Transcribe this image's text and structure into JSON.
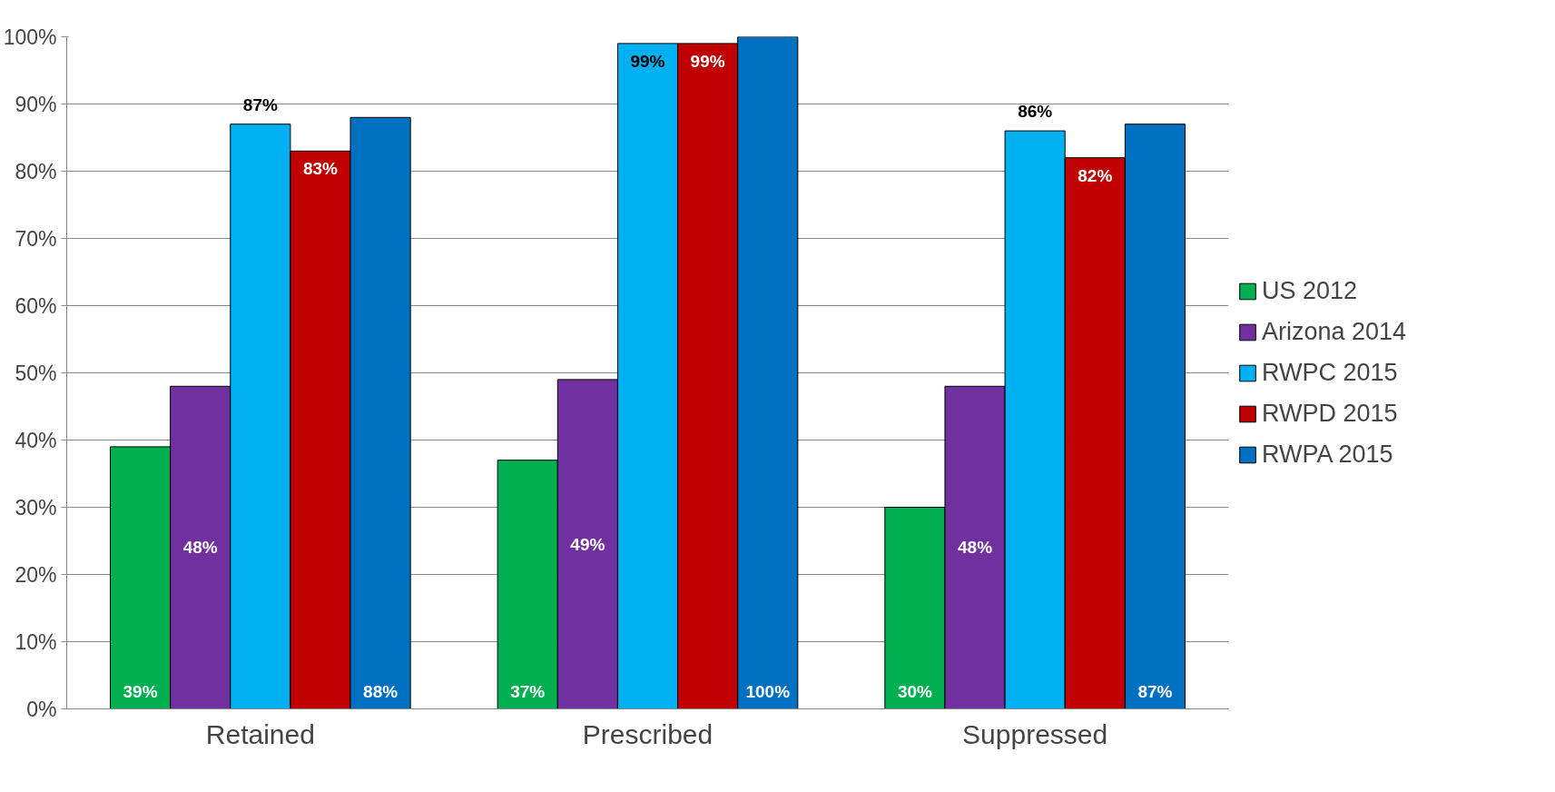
{
  "chart_data": {
    "type": "bar",
    "categories": [
      "Retained",
      "Prescribed",
      "Suppressed"
    ],
    "series": [
      {
        "name": "US 2012",
        "color": "#00b050",
        "values": [
          39,
          37,
          30
        ],
        "value_labels": [
          "39%",
          "37%",
          "30%"
        ]
      },
      {
        "name": "Arizona 2014",
        "color": "#7030a0",
        "values": [
          48,
          49,
          48
        ],
        "value_labels": [
          "48%",
          "49%",
          "48%"
        ]
      },
      {
        "name": "RWPC 2015",
        "color": "#00b0f0",
        "values": [
          87,
          99,
          86
        ],
        "value_labels": [
          "87%",
          "99%",
          "86%"
        ]
      },
      {
        "name": "RWPD 2015",
        "color": "#c00000",
        "values": [
          83,
          99,
          82
        ],
        "value_labels": [
          "83%",
          "99%",
          "82%"
        ]
      },
      {
        "name": "RWPA 2015",
        "color": "#0070c0",
        "values": [
          88,
          100,
          87
        ],
        "value_labels": [
          "88%",
          "100%",
          "87%"
        ]
      }
    ],
    "ylim": [
      0,
      100
    ],
    "yticks": [
      {
        "value": 0,
        "label": "0%"
      },
      {
        "value": 10,
        "label": "10%"
      },
      {
        "value": 20,
        "label": "20%"
      },
      {
        "value": 30,
        "label": "30%"
      },
      {
        "value": 40,
        "label": "40%"
      },
      {
        "value": 50,
        "label": "50%"
      },
      {
        "value": 60,
        "label": "60%"
      },
      {
        "value": 70,
        "label": "70%"
      },
      {
        "value": 80,
        "label": "80%"
      },
      {
        "value": 90,
        "label": "90%"
      },
      {
        "value": 100,
        "label": "100%"
      }
    ],
    "grid": "y",
    "legend": "right"
  }
}
